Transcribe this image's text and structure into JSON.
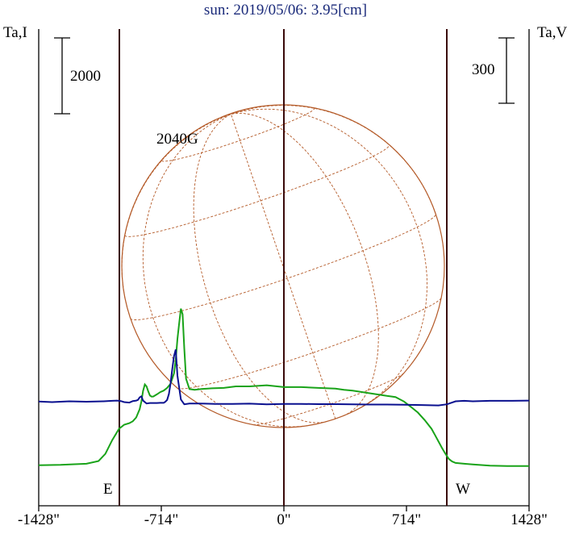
{
  "title": "sun: 2019/05/06: 3.95[cm]",
  "y_left_label": "Ta,I",
  "y_right_label": "Ta,V",
  "scale_left": "2000",
  "scale_right": "300",
  "annotation": "2040G",
  "east_label": "E",
  "west_label": "W",
  "colors": {
    "I": "#19a319",
    "V": "#0a108f",
    "grid": "#b45a28",
    "lines": "#3a0a0a"
  },
  "chart_data": {
    "type": "line",
    "title": "sun: 2019/05/06: 3.95[cm]",
    "xlabel": "",
    "ylabel": "Ta,I",
    "y2label": "Ta,V",
    "xlim": [
      -1428,
      1428
    ],
    "x_ticks": [
      "-1428\"",
      "-714\"",
      "0\"",
      "714\"",
      "1428\""
    ],
    "x_tick_values": [
      -1428,
      -714,
      0,
      714,
      1428
    ],
    "limb_positions": [
      -950,
      950
    ],
    "scale_bars": {
      "I": 2000,
      "V": 300
    },
    "series": [
      {
        "name": "I",
        "axis": "left",
        "x": [
          -1428,
          -1300,
          -1150,
          -1080,
          -1040,
          -1000,
          -960,
          -930,
          -900,
          -880,
          -860,
          -840,
          -830,
          -820,
          -810,
          -800,
          -790,
          -780,
          -770,
          -760,
          -740,
          -720,
          -700,
          -680,
          -660,
          -640,
          -630,
          -620,
          -610,
          -600,
          -590,
          -580,
          -570,
          -550,
          -520,
          -480,
          -420,
          -350,
          -280,
          -200,
          -100,
          0,
          100,
          200,
          300,
          350,
          400,
          500,
          600,
          650,
          700,
          740,
          780,
          820,
          860,
          880,
          900,
          920,
          940,
          960,
          980,
          1000,
          1050,
          1100,
          1200,
          1300,
          1428
        ],
        "y": [
          -80,
          -70,
          -40,
          30,
          220,
          580,
          880,
          990,
          1030,
          1080,
          1180,
          1400,
          1600,
          1880,
          2050,
          2000,
          1870,
          1760,
          1730,
          1735,
          1790,
          1850,
          1890,
          1960,
          2070,
          2350,
          2700,
          3250,
          3650,
          4050,
          3900,
          3000,
          2200,
          1930,
          1910,
          1930,
          1950,
          1960,
          2000,
          2000,
          2030,
          1980,
          1980,
          1960,
          1940,
          1910,
          1890,
          1820,
          1750,
          1720,
          1600,
          1460,
          1310,
          1110,
          880,
          720,
          550,
          380,
          230,
          90,
          20,
          -20,
          -40,
          -60,
          -90,
          -100,
          -100
        ]
      },
      {
        "name": "V",
        "axis": "right",
        "x": [
          -1428,
          -1350,
          -1250,
          -1150,
          -1050,
          -1000,
          -970,
          -950,
          -930,
          -900,
          -880,
          -860,
          -850,
          -840,
          -830,
          -820,
          -800,
          -780,
          -760,
          -740,
          -720,
          -700,
          -690,
          -680,
          -670,
          -660,
          -650,
          -640,
          -630,
          -620,
          -600,
          -580,
          -550,
          -500,
          -400,
          -300,
          -200,
          -100,
          0,
          100,
          200,
          300,
          400,
          500,
          600,
          700,
          800,
          900,
          950,
          1000,
          1050,
          1100,
          1200,
          1300,
          1428
        ],
        "y": [
          1,
          -2,
          2,
          0,
          2,
          4,
          5,
          3,
          -2,
          -4,
          3,
          5,
          8,
          20,
          25,
          5,
          -8,
          -6,
          -6,
          -6,
          -5,
          -5,
          0,
          8,
          35,
          85,
          150,
          210,
          240,
          120,
          10,
          -12,
          -8,
          -8,
          -10,
          -10,
          -9,
          -12,
          -10,
          -10,
          -11,
          -11,
          -12,
          -13,
          -13,
          -14,
          -15,
          -17,
          -12,
          2,
          4,
          2,
          4,
          4,
          5
        ]
      }
    ]
  }
}
